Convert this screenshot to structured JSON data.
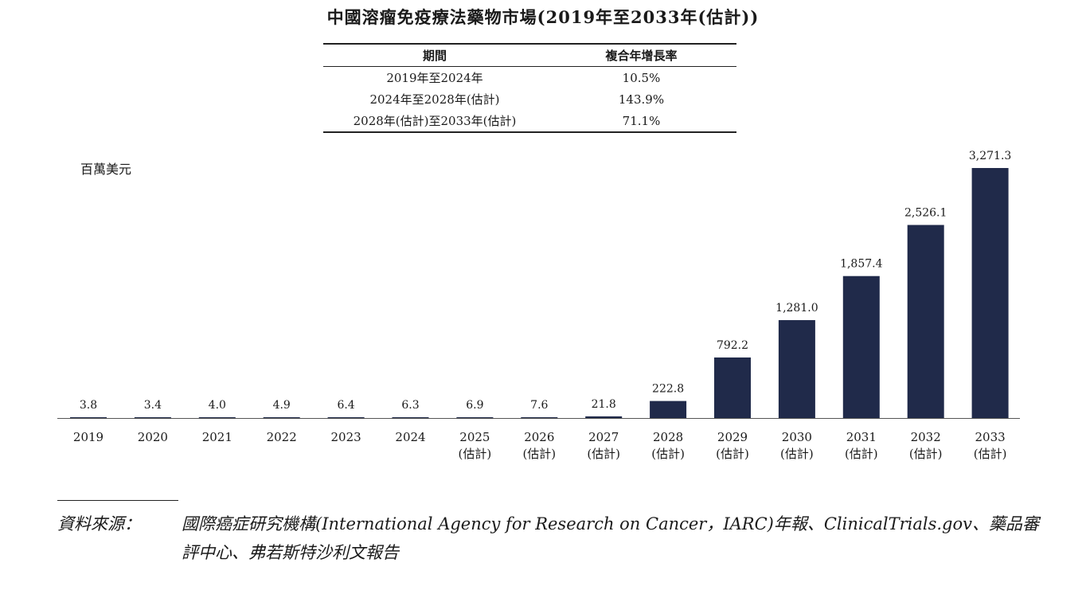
{
  "title": "中國溶瘤免疫療法藥物市場(2019年至2033年(估計))",
  "cagr_table": {
    "headers": [
      "期間",
      "複合年增長率"
    ],
    "rows": [
      [
        "2019年至2024年",
        "10.5%"
      ],
      [
        "2024年至2028年(估計)",
        "143.9%"
      ],
      [
        "2028年(估計)至2033年(估計)",
        "71.1%"
      ]
    ]
  },
  "chart_data": {
    "type": "bar",
    "title": "中國溶瘤免疫療法藥物市場(2019年至2033年(估計))",
    "ylabel": "百萬美元",
    "xlabel": "",
    "categories": [
      "2019",
      "2020",
      "2021",
      "2022",
      "2023",
      "2024",
      "2025",
      "2026",
      "2027",
      "2028",
      "2029",
      "2030",
      "2031",
      "2032",
      "2033"
    ],
    "category_sublabels": [
      "",
      "",
      "",
      "",
      "",
      "",
      "(估計)",
      "(估計)",
      "(估計)",
      "(估計)",
      "(估計)",
      "(估計)",
      "(估計)",
      "(估計)",
      "(估計)"
    ],
    "values": [
      3.8,
      3.4,
      4.0,
      4.9,
      6.4,
      6.3,
      6.9,
      7.6,
      21.8,
      222.8,
      792.2,
      1281.0,
      1857.4,
      2526.1,
      3271.3
    ],
    "value_labels": [
      "3.8",
      "3.4",
      "4.0",
      "4.9",
      "6.4",
      "6.3",
      "6.9",
      "7.6",
      "21.8",
      "222.8",
      "792.2",
      "1,281.0",
      "1,857.4",
      "2,526.1",
      "3,271.3"
    ],
    "ylim": [
      0,
      3271.3
    ],
    "bar_color": "#202a4a",
    "grid": false
  },
  "source": {
    "label": "資料來源：",
    "text": "國際癌症研究機構(International Agency for Research on Cancer，IARC)年報、ClinicalTrials.gov、藥品審評中心、弗若斯特沙利文報告"
  }
}
